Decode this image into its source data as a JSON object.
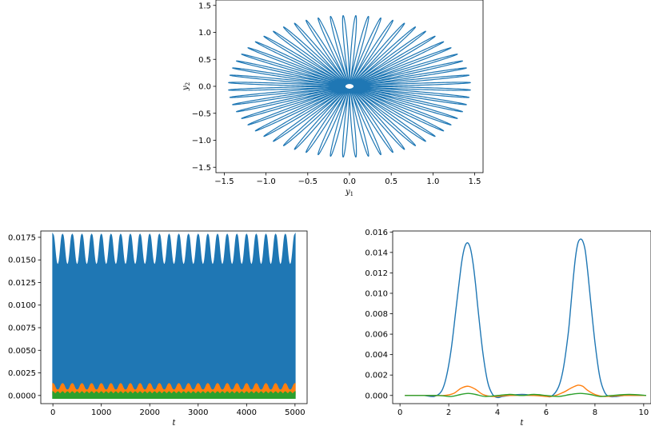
{
  "colors": {
    "c0": "#1f77b4",
    "c1": "#ff7f0e",
    "c2": "#2ca02c"
  },
  "chart_data": [
    {
      "id": "phase",
      "type": "line",
      "title": "",
      "xlabel": "y",
      "xlabel_sub": "1",
      "ylabel": "y",
      "ylabel_sub": "2",
      "xlim": [
        -1.6,
        1.6
      ],
      "ylim": [
        -1.6,
        1.6
      ],
      "xticks": [
        "−1.5",
        "−1.0",
        "−0.5",
        "0.0",
        "0.5",
        "1.0",
        "1.5"
      ],
      "xtick_values": [
        -1.5,
        -1.0,
        -0.5,
        0.0,
        0.5,
        1.0,
        1.5
      ],
      "yticks": [
        "−1.5",
        "−1.0",
        "−0.5",
        "0.0",
        "0.5",
        "1.0",
        "1.5"
      ],
      "ytick_values": [
        -1.5,
        -1.0,
        -0.5,
        0.0,
        0.5,
        1.0,
        1.5
      ],
      "series": [
        {
          "color": "#1f77b4",
          "curve": "rosette",
          "outer_radius_x": 1.45,
          "outer_radius_y": 1.45,
          "inner_radius": 0.05,
          "petals": 60
        }
      ],
      "grid": false
    },
    {
      "id": "long",
      "type": "line",
      "title": "",
      "xlabel": "t",
      "ylabel": "",
      "xlim": [
        -250,
        5250
      ],
      "ylim": [
        -0.0009,
        0.0182
      ],
      "xticks": [
        "0",
        "1000",
        "2000",
        "3000",
        "4000",
        "5000"
      ],
      "xtick_values": [
        0,
        1000,
        2000,
        3000,
        4000,
        5000
      ],
      "yticks": [
        "0.0000",
        "0.0025",
        "0.0050",
        "0.0075",
        "0.0100",
        "0.0125",
        "0.0150",
        "0.0175"
      ],
      "ytick_values": [
        0,
        0.0025,
        0.005,
        0.0075,
        0.01,
        0.0125,
        0.015,
        0.0175
      ],
      "series": [
        {
          "color": "#1f77b4",
          "x_range": [
            0,
            5000
          ],
          "band_min": -0.0003,
          "band_max_low": 0.0145,
          "band_max_high": 0.0178,
          "beat_count": 25
        },
        {
          "color": "#ff7f0e",
          "x_range": [
            0,
            5000
          ],
          "band_min": 0.0001,
          "band_max_low": 0.0006,
          "band_max_high": 0.0013,
          "beat_count": 25
        },
        {
          "color": "#2ca02c",
          "x_range": [
            0,
            5000
          ],
          "band_min": -0.0003,
          "band_max_low": 0.0002,
          "band_max_high": 0.0004,
          "beat_count": 50
        }
      ],
      "grid": false
    },
    {
      "id": "short",
      "type": "line",
      "title": "",
      "xlabel": "t",
      "ylabel": "",
      "xlim": [
        -0.3,
        10.3
      ],
      "ylim": [
        -0.0008,
        0.0161
      ],
      "xticks": [
        "0",
        "2",
        "4",
        "6",
        "8",
        "10"
      ],
      "xtick_values": [
        0,
        2,
        4,
        6,
        8,
        10
      ],
      "yticks": [
        "0.000",
        "0.002",
        "0.004",
        "0.006",
        "0.008",
        "0.010",
        "0.012",
        "0.014",
        "0.016"
      ],
      "ytick_values": [
        0,
        0.002,
        0.004,
        0.006,
        0.008,
        0.01,
        0.012,
        0.014,
        0.016
      ],
      "series": [
        {
          "color": "#1f77b4",
          "x": [
            0.2,
            0.6,
            1.0,
            1.4,
            1.7,
            1.9,
            2.1,
            2.3,
            2.5,
            2.6,
            2.7,
            2.8,
            2.9,
            3.0,
            3.1,
            3.2,
            3.4,
            3.6,
            3.8,
            4.0,
            4.2,
            4.5,
            5.0,
            5.5,
            5.9,
            6.2,
            6.5,
            6.7,
            6.9,
            7.0,
            7.1,
            7.2,
            7.3,
            7.4,
            7.5,
            7.6,
            7.7,
            7.8,
            8.0,
            8.2,
            8.4,
            8.6,
            8.9,
            9.2,
            9.6,
            10.1
          ],
          "y": [
            0.0,
            0.0,
            0.0,
            -0.0001,
            0.0004,
            0.0018,
            0.0045,
            0.0085,
            0.0125,
            0.014,
            0.0148,
            0.0149,
            0.0143,
            0.0129,
            0.0109,
            0.0085,
            0.0042,
            0.0013,
            0.0001,
            -0.0002,
            -0.0001,
            0.0,
            0.0001,
            0.0,
            0.0,
            -0.0001,
            0.0008,
            0.0026,
            0.006,
            0.0085,
            0.0112,
            0.0135,
            0.0149,
            0.0153,
            0.0151,
            0.0142,
            0.0122,
            0.0098,
            0.0052,
            0.0018,
            0.0003,
            -0.0001,
            -0.0001,
            0.0,
            0.0,
            0.0
          ]
        },
        {
          "color": "#ff7f0e",
          "x": [
            0.2,
            1.0,
            1.8,
            2.2,
            2.5,
            2.8,
            3.1,
            3.4,
            3.8,
            4.5,
            5.5,
            6.2,
            6.7,
            7.0,
            7.3,
            7.5,
            7.7,
            8.0,
            8.4,
            9.2,
            10.1
          ],
          "y": [
            0.0,
            0.0,
            0.0,
            0.0002,
            0.0007,
            0.0009,
            0.0006,
            0.0001,
            -0.0001,
            0.0,
            0.0,
            -0.0001,
            0.0003,
            0.0007,
            0.001,
            0.0009,
            0.0005,
            0.0001,
            -0.0001,
            0.0,
            0.0
          ]
        },
        {
          "color": "#2ca02c",
          "x": [
            0.2,
            1.0,
            1.6,
            2.1,
            2.5,
            2.8,
            3.1,
            3.5,
            4.0,
            4.5,
            5.0,
            5.5,
            6.0,
            6.5,
            7.0,
            7.4,
            7.8,
            8.2,
            8.7,
            9.4,
            10.1
          ],
          "y": [
            0.0,
            0.0,
            0.0,
            -0.0001,
            0.0001,
            0.0002,
            0.0001,
            -0.0001,
            0.0,
            0.0001,
            0.0,
            0.0001,
            0.0,
            -0.0001,
            0.0001,
            0.0002,
            0.0001,
            -0.0001,
            0.0,
            0.0001,
            0.0
          ]
        }
      ],
      "grid": false
    }
  ]
}
